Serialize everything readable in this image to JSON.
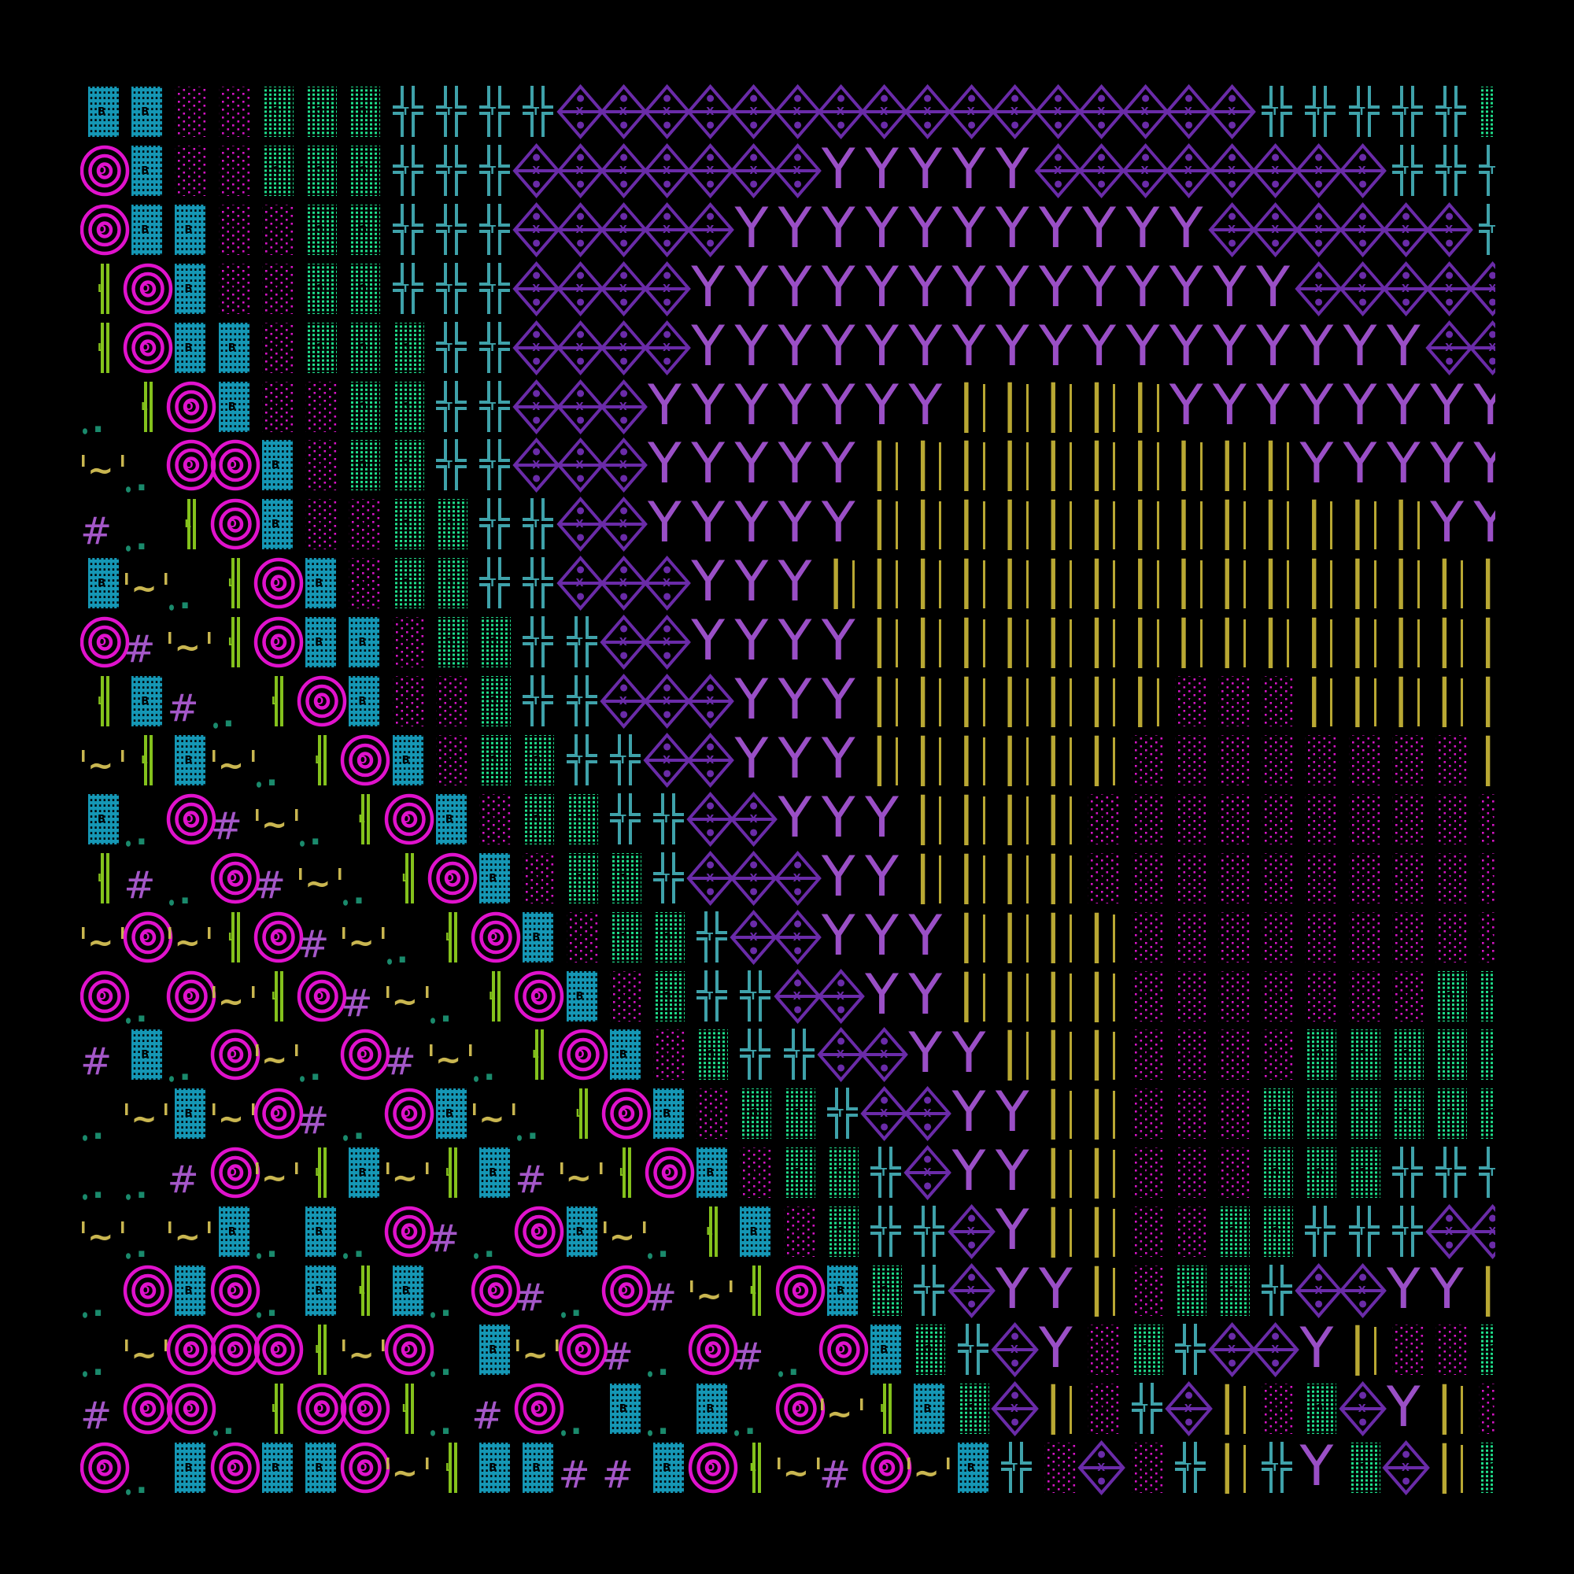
{
  "canvas": {
    "background": "#000000"
  },
  "glyphs": {
    "B": {
      "name": "teal-block-tile",
      "color": "#1597b5"
    },
    "M": {
      "name": "magenta-dot-tile",
      "color": "#d414c4"
    },
    "G": {
      "name": "green-dot-tile",
      "color": "#1fe08c"
    },
    "T": {
      "name": "teal-cross-bars",
      "color": "#3fa2aa"
    },
    "X": {
      "name": "purple-diamond-chain",
      "color": "#6a2ba8"
    },
    "Y": {
      "name": "purple-y-glyph",
      "color": "#9a4fc6"
    },
    "|": {
      "name": "yellow-double-bars",
      "color": "#b9a833"
    },
    "O": {
      "name": "magenta-concentric-circles",
      "color": "#e012cc"
    },
    "L": {
      "name": "lime-double-bar",
      "color": "#84c21c"
    },
    "~": {
      "name": "yellow-tilde-quotes",
      "color": "#c9b650"
    },
    ".": {
      "name": "green-two-dots",
      "color": "#1a8a6c"
    },
    "#": {
      "name": "purple-hash",
      "color": "#a457c8"
    }
  },
  "grid": {
    "rows": [
      "BBMMGGGTTTTXXXXXXXXXXXXXXXXTTTTTG",
      "OBMMGGGTTTXXXXXXXYYYYYXXXXXXXXTTT",
      "OBBMMGGTTTXXXXXYYYYYYYYYYYXXXXXXT",
      "LOBMMGGTTTXXXXYYYYYYYYYYYYYYXXXXX",
      "LOBBMGGGTTXXXXYYYYYYYYYYYYYYYYYXX",
      ".LOBMMGGTTXXXYYYYYYY|||||YYYYYYYY",
      "~.OOBMGGTTXXXYYYYY||||||||||YYYYY",
      "#.LOBMMGGTTXXYYYYY|||||||||||||YY",
      "B~.LOBMGGTTXXXYYY||||||||||||||||",
      "O#~LOBBMGGTTXXYYYY|||||||||||||||",
      "LB#.LOBMMGTTXXXYYY|||||||MMM|||||",
      "~LB~.LOBMGGTTXXYYY||||||MMMMMMMM|",
      "B.O#~.LOBMGGTTXXYYY||||MMMMMMMMMM",
      "L#.O#~.LOBMGGTXXXYY||||MMMMMMMMMM",
      "~O~LO#~.LOBMGGTXXYYY||||MMMMMMMMM",
      "O.O~LO#~.LOBMGTTXXYY||||MMMMMMMGG",
      "#B.O~.O#~.LOBMGTTXXYY|||MMMMGGGGG",
      ".~B~O#.OB~.LOBMGGTXXYY||MMMGGGGGG",
      "..#O~LB~LB#~LOBMGGTXYY||MMMGGGTTT",
      "~.~B.B.O#.OB~.LBMGTTXY||MMGGTTTXX",
      ".OBO.BLB.O#.O#~LOBGTXYY|MGGTXXYY|",
      ".~OOOL~O.B~O#.O#.OBGTXYMGTXXY|MMG",
      "#OO.LOOL.#O.B.B.O~LBGX|MTX|MGXY|M",
      "O.BOBBO~LBB##BOL~#O~BTMXMT|TYGX|G"
    ]
  }
}
